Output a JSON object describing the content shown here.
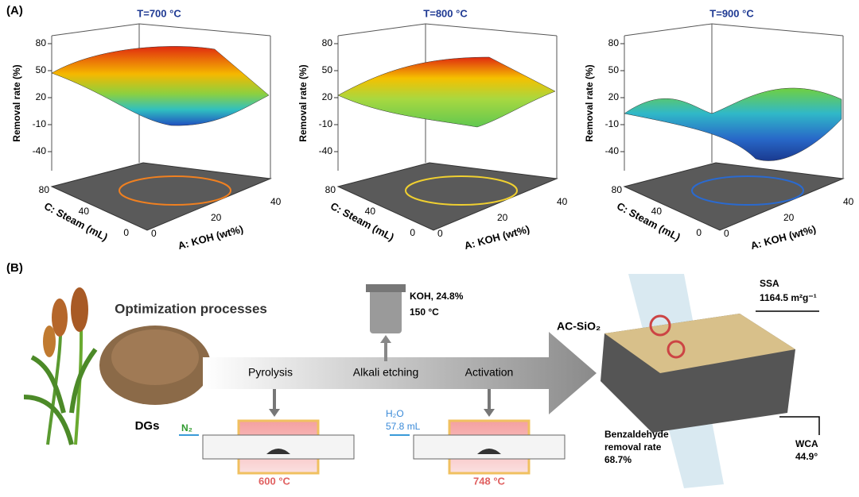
{
  "panel_a": {
    "label": "(A)",
    "plots": [
      {
        "title": "T=700 °C",
        "z_label": "Removal rate (%)",
        "z_ticks": [
          80,
          50,
          20,
          -10,
          -40
        ],
        "y_label": "C: Steam (mL)",
        "y_ticks": [
          80,
          40,
          0
        ],
        "x_label": "A: KOH (wt%)",
        "x_ticks": [
          0,
          20,
          40
        ]
      },
      {
        "title": "T=800 °C",
        "z_label": "Removal rate (%)",
        "z_ticks": [
          80,
          50,
          20,
          -10,
          -40
        ],
        "y_label": "C: Steam (mL)",
        "y_ticks": [
          80,
          40,
          0
        ],
        "x_label": "A: KOH (wt%)",
        "x_ticks": [
          0,
          20,
          40
        ]
      },
      {
        "title": "T=900 °C",
        "z_label": "Removal rate (%)",
        "z_ticks": [
          80,
          50,
          20,
          -10,
          -40
        ],
        "y_label": "C: Steam (mL)",
        "y_ticks": [
          80,
          40,
          0
        ],
        "x_label": "A: KOH (wt%)",
        "x_ticks": [
          0,
          20,
          40
        ]
      }
    ]
  },
  "panel_b": {
    "label": "(B)",
    "title": "Optimization processes",
    "feedstock": "DGs",
    "steps": [
      "Pyrolysis",
      "Alkali etching",
      "Activation"
    ],
    "etching": {
      "reagent": "KOH, 24.8%",
      "temperature": "150 °C"
    },
    "pyrolysis": {
      "gas": "N₂",
      "temperature": "600 °C"
    },
    "activation": {
      "agent": "H₂O",
      "volume": "57.8 mL",
      "temperature": "748 °C"
    },
    "product": {
      "name": "AC-SiO₂",
      "ssa_label": "SSA",
      "ssa_value": "1164.5 m²g⁻¹",
      "removal_label_1": "Benzaldehyde",
      "removal_label_2": "removal rate",
      "removal_value": "68.7%",
      "wca_label": "WCA",
      "wca_value": "44.9°"
    }
  }
}
